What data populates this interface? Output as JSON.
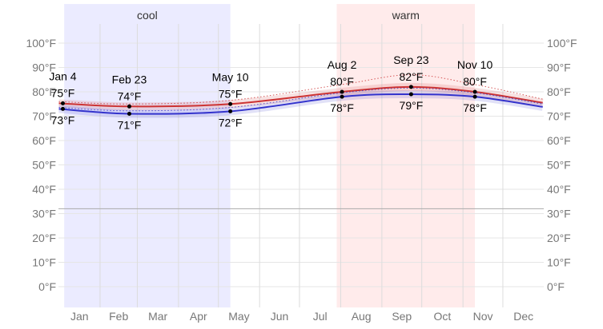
{
  "chart_data": {
    "type": "line",
    "title": "",
    "xlabel": "",
    "ylabel": "",
    "ylim": [
      -10,
      110
    ],
    "yticks": [
      "0°F",
      "10°F",
      "20°F",
      "30°F",
      "40°F",
      "50°F",
      "60°F",
      "70°F",
      "80°F",
      "90°F",
      "100°F"
    ],
    "ytick_values": [
      0,
      10,
      20,
      30,
      40,
      50,
      60,
      70,
      80,
      90,
      100
    ],
    "xticks": [
      "Jan",
      "Feb",
      "Mar",
      "Apr",
      "May",
      "Jun",
      "Jul",
      "Aug",
      "Sep",
      "Oct",
      "Nov",
      "Dec"
    ],
    "grid": true,
    "reference_line": 32,
    "seasons": [
      {
        "label": "cool",
        "start": "01-05",
        "end": "05-10",
        "color": "#ebebff"
      },
      {
        "label": "warm",
        "start": "07-29",
        "end": "11-10",
        "color": "#ffebeb"
      }
    ],
    "series": [
      {
        "color": "#cc3333",
        "style": "solid",
        "points": [
          [
            "01-01",
            75.3
          ],
          [
            "02-23",
            74
          ],
          [
            "05-10",
            75
          ],
          [
            "08-02",
            80
          ],
          [
            "09-23",
            82
          ],
          [
            "11-10",
            80
          ],
          [
            "12-31",
            75.5
          ]
        ]
      },
      {
        "color": "#3333cc",
        "style": "solid",
        "points": [
          [
            "01-01",
            73
          ],
          [
            "02-23",
            71
          ],
          [
            "05-10",
            72
          ],
          [
            "08-02",
            78
          ],
          [
            "09-23",
            79
          ],
          [
            "11-10",
            78
          ],
          [
            "12-31",
            73.8
          ]
        ]
      },
      {
        "color": "#cc3333",
        "style": "dotted",
        "points": [
          [
            "01-01",
            76
          ],
          [
            "02-23",
            75
          ],
          [
            "05-10",
            76.5
          ],
          [
            "08-02",
            83
          ],
          [
            "09-23",
            87
          ],
          [
            "11-10",
            83
          ],
          [
            "12-31",
            77
          ]
        ]
      },
      {
        "color": "#3333cc",
        "style": "dotted",
        "points": [
          [
            "01-01",
            73.6
          ],
          [
            "02-23",
            72.2
          ],
          [
            "05-10",
            73.6
          ],
          [
            "08-02",
            79.6
          ],
          [
            "09-23",
            81.5
          ],
          [
            "11-10",
            79.6
          ],
          [
            "12-31",
            75
          ]
        ]
      }
    ],
    "annotations": [
      {
        "date": "Jan 4",
        "day": "01-04",
        "high": "75°F",
        "low": "73°F",
        "hv": 75.3,
        "lv": 73
      },
      {
        "date": "Feb 23",
        "day": "02-23",
        "high": "74°F",
        "low": "71°F",
        "hv": 74,
        "lv": 71
      },
      {
        "date": "May 10",
        "day": "05-10",
        "high": "75°F",
        "low": "72°F",
        "hv": 75,
        "lv": 72
      },
      {
        "date": "Aug 2",
        "day": "08-02",
        "high": "80°F",
        "low": "78°F",
        "hv": 80,
        "lv": 78
      },
      {
        "date": "Sep 23",
        "day": "09-23",
        "high": "82°F",
        "low": "79°F",
        "hv": 82,
        "lv": 79
      },
      {
        "date": "Nov 10",
        "day": "11-10",
        "high": "80°F",
        "low": "78°F",
        "hv": 80,
        "lv": 78
      }
    ]
  }
}
